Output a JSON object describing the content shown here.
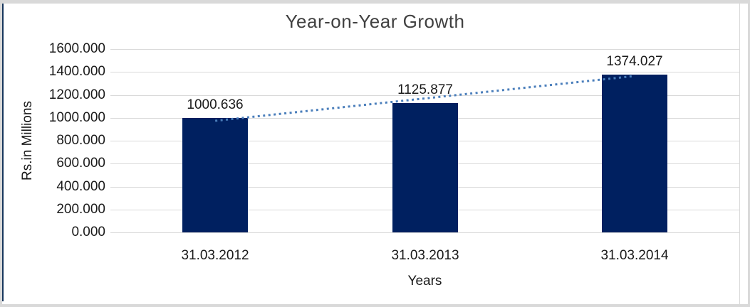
{
  "frame": {
    "border_gray": "#d9d9d9",
    "border_dark": "#17365d"
  },
  "chart_data": {
    "type": "bar",
    "title": "Year-on-Year Growth",
    "xlabel": "Years",
    "ylabel": "Rs.in Millions",
    "categories": [
      "31.03.2012",
      "31.03.2013",
      "31.03.2014"
    ],
    "values": [
      1000.636,
      1125.877,
      1374.027
    ],
    "data_labels": [
      "1000.636",
      "1125.877",
      "1374.027"
    ],
    "ylim": [
      0,
      1600
    ],
    "ytick_step": 200,
    "ytick_labels_top_to_bottom": [
      "1600.000",
      "1400.000",
      "1200.000",
      "1000.000",
      "800.000",
      "600.000",
      "400.000",
      "200.000",
      "0.000"
    ],
    "grid": true,
    "legend": "none",
    "trendline": {
      "style": "dotted",
      "color": "#4a7ebb"
    },
    "colors": {
      "bar": "#002060",
      "gridline": "#d9d9d9",
      "text": "#1a1a1a",
      "title": "#404040"
    }
  }
}
